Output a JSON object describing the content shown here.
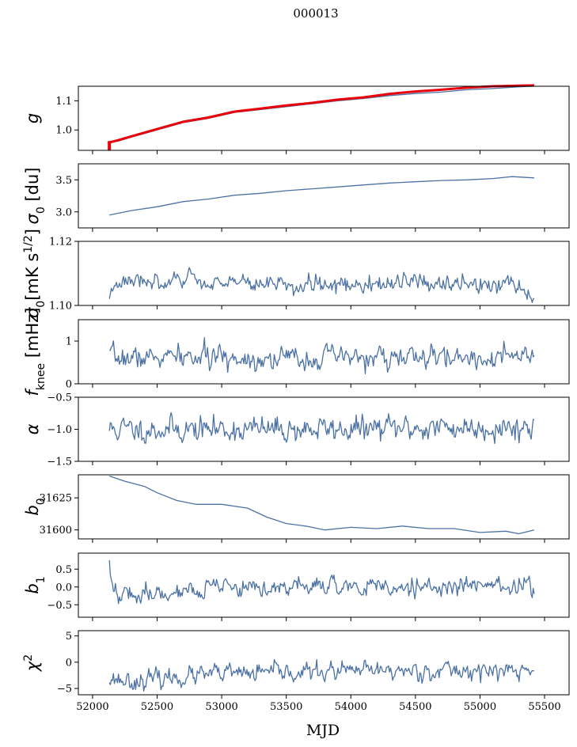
{
  "figure": {
    "title": "000013",
    "xlabel": "MJD",
    "x_ticks": [
      52000,
      52500,
      53000,
      53500,
      54000,
      54500,
      55000,
      55500
    ],
    "xlim": [
      51890,
      55690
    ],
    "colors": {
      "series": "#4c72a4",
      "red": "#e8000b",
      "frame": "#000000"
    }
  },
  "chart_data": [
    {
      "type": "line",
      "ylabel": "g",
      "ylim": [
        0.93,
        1.15
      ],
      "y_ticks": [
        1.0,
        1.1
      ],
      "y_tick_labels": [
        "1.0",
        "1.1"
      ],
      "series": [
        {
          "color": "#4c72a4",
          "x": [
            52120,
            52200,
            52300,
            52500,
            52700,
            52900,
            53100,
            53300,
            53500,
            53700,
            53900,
            54100,
            54300,
            54500,
            54700,
            54900,
            55100,
            55300,
            55420
          ],
          "y": [
            0.955,
            0.962,
            0.975,
            1.0,
            1.025,
            1.04,
            1.06,
            1.07,
            1.08,
            1.09,
            1.1,
            1.108,
            1.118,
            1.125,
            1.13,
            1.138,
            1.142,
            1.148,
            1.15
          ]
        },
        {
          "color": "#e8000b",
          "x": [
            52120,
            52200,
            52300,
            52500,
            52700,
            52900,
            53100,
            53300,
            53500,
            53700,
            53900,
            54100,
            54300,
            54500,
            54700,
            54900,
            55100,
            55300,
            55420
          ],
          "y": [
            0.956,
            0.965,
            0.978,
            1.003,
            1.028,
            1.043,
            1.063,
            1.073,
            1.084,
            1.093,
            1.104,
            1.112,
            1.124,
            1.132,
            1.138,
            1.145,
            1.15,
            1.152,
            1.153
          ]
        }
      ],
      "markers": [
        {
          "x": 52130,
          "y_from": 0.93,
          "y_to": 0.962,
          "color": "#e8000b"
        }
      ]
    },
    {
      "type": "line",
      "ylabel": "σ0 [du]",
      "ylim": [
        2.75,
        3.75
      ],
      "y_ticks": [
        3.0,
        3.5
      ],
      "y_tick_labels": [
        "3.0",
        "3.5"
      ],
      "series": [
        {
          "color": "#4c72a4",
          "x": [
            52130,
            52300,
            52500,
            52700,
            52900,
            53100,
            53300,
            53500,
            53700,
            53900,
            54100,
            54300,
            54500,
            54700,
            54900,
            55100,
            55250,
            55420
          ],
          "y": [
            2.95,
            3.02,
            3.08,
            3.16,
            3.2,
            3.26,
            3.29,
            3.33,
            3.36,
            3.39,
            3.42,
            3.45,
            3.47,
            3.49,
            3.5,
            3.52,
            3.55,
            3.53
          ]
        }
      ]
    },
    {
      "type": "line",
      "ylabel": "σ0[mK s1/2]",
      "ylim": [
        1.1,
        1.12
      ],
      "y_ticks": [
        1.1,
        1.12
      ],
      "y_tick_labels": [
        "1.10",
        "1.12"
      ],
      "noise": {
        "sd": 0.0012,
        "seed": 3
      },
      "series": [
        {
          "color": "#4c72a4",
          "x": [
            52130,
            52250,
            52400,
            52600,
            52750,
            52900,
            53200,
            53500,
            53800,
            54100,
            54400,
            54700,
            55000,
            55250,
            55420
          ],
          "y": [
            1.104,
            1.109,
            1.108,
            1.106,
            1.109,
            1.107,
            1.107,
            1.106,
            1.107,
            1.106,
            1.107,
            1.107,
            1.106,
            1.107,
            1.102
          ]
        }
      ]
    },
    {
      "type": "line",
      "ylabel": "fknee [mHz]",
      "ylim": [
        0,
        1.5
      ],
      "y_ticks": [
        0,
        1
      ],
      "y_tick_labels": [
        "0",
        "1"
      ],
      "noise": {
        "sd": 0.12,
        "seed": 7
      },
      "series": [
        {
          "color": "#4c72a4",
          "x": [
            52130,
            52700,
            53300,
            53900,
            54500,
            55100,
            55420
          ],
          "y": [
            0.6,
            0.62,
            0.6,
            0.61,
            0.6,
            0.62,
            0.6
          ]
        }
      ]
    },
    {
      "type": "line",
      "ylabel": "α",
      "ylim": [
        -1.5,
        -0.5
      ],
      "y_ticks": [
        -1.5,
        -1.0,
        -0.5
      ],
      "y_tick_labels": [
        "−1.5",
        "−1.0",
        "−0.5"
      ],
      "noise": {
        "sd": 0.09,
        "seed": 11
      },
      "series": [
        {
          "color": "#4c72a4",
          "x": [
            52130,
            52700,
            53300,
            53900,
            54500,
            55100,
            55420
          ],
          "y": [
            -1.0,
            -1.0,
            -1.0,
            -1.0,
            -0.98,
            -0.97,
            -0.97
          ]
        }
      ]
    },
    {
      "type": "line",
      "ylabel": "b0",
      "ylim": [
        31593,
        31643
      ],
      "y_ticks": [
        31600,
        31625
      ],
      "y_tick_labels": [
        "31600",
        "31625"
      ],
      "series": [
        {
          "color": "#4c72a4",
          "x": [
            52130,
            52250,
            52400,
            52500,
            52650,
            52800,
            53000,
            53200,
            53350,
            53500,
            53650,
            53800,
            54000,
            54200,
            54400,
            54600,
            54800,
            55000,
            55200,
            55300,
            55420
          ],
          "y": [
            31642,
            31638,
            31634,
            31629,
            31623,
            31620,
            31620,
            31617,
            31610,
            31605,
            31603,
            31600,
            31602,
            31601,
            31603,
            31601,
            31601,
            31598,
            31599,
            31597,
            31600
          ]
        }
      ]
    },
    {
      "type": "line",
      "ylabel": "b1",
      "ylim": [
        -0.85,
        0.95
      ],
      "y_ticks": [
        -0.5,
        0.0,
        0.5
      ],
      "y_tick_labels": [
        "−0.5",
        "0.0",
        "0.5"
      ],
      "noise": {
        "sd": 0.12,
        "seed": 19
      },
      "series": [
        {
          "color": "#4c72a4",
          "x": [
            52130,
            52150,
            52300,
            52700,
            53300,
            53900,
            54500,
            55100,
            55420
          ],
          "y": [
            0.55,
            -0.1,
            -0.2,
            -0.1,
            -0.02,
            0.0,
            0.0,
            0.02,
            0.02
          ]
        }
      ]
    },
    {
      "type": "line",
      "ylabel": "χ2",
      "ylim": [
        -6.2,
        6.0
      ],
      "y_ticks": [
        -5,
        0,
        5
      ],
      "y_tick_labels": [
        "−5",
        "0",
        "5"
      ],
      "noise": {
        "sd": 0.8,
        "seed": 23
      },
      "series": [
        {
          "color": "#4c72a4",
          "x": [
            52130,
            52300,
            52600,
            53000,
            53500,
            54000,
            54500,
            55000,
            55420
          ],
          "y": [
            -3.0,
            -3.6,
            -3.0,
            -2.2,
            -2.0,
            -1.7,
            -1.6,
            -1.6,
            -1.8
          ]
        }
      ]
    }
  ]
}
